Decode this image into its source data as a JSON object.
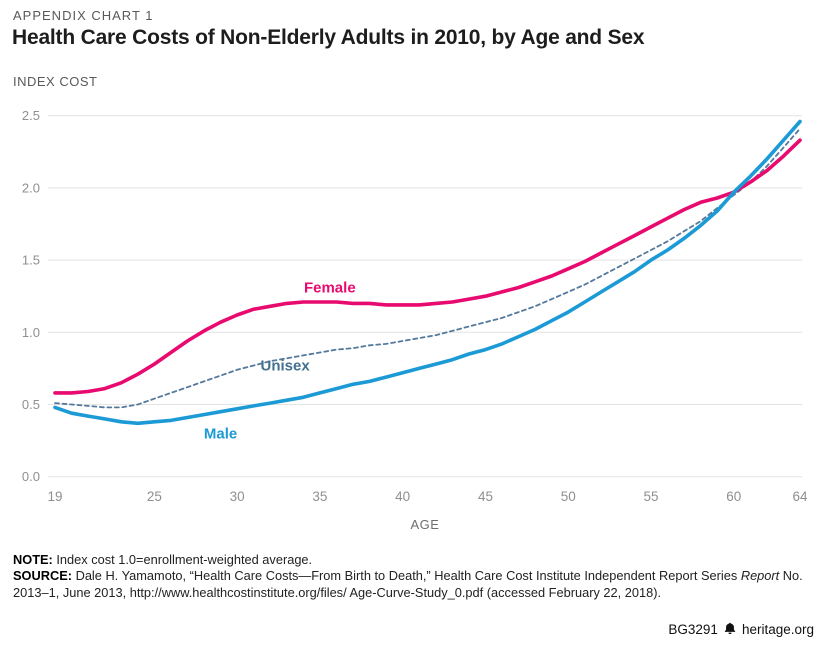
{
  "header": {
    "eyebrow": "APPENDIX CHART 1",
    "title": "Health Care Costs of Non-Elderly Adults in 2010, by Age and Sex"
  },
  "chart_data": {
    "type": "line",
    "title": "Health Care Costs of Non-Elderly Adults in 2010, by Age and Sex",
    "xlabel": "AGE",
    "ylabel": "INDEX COST",
    "x_range": [
      19,
      64
    ],
    "ylim": [
      0.0,
      2.5
    ],
    "x_ticks": [
      19,
      25,
      30,
      35,
      40,
      45,
      50,
      55,
      60,
      64
    ],
    "y_ticks": [
      "0.0",
      "0.5",
      "1.0",
      "1.5",
      "2.0",
      "2.5"
    ],
    "grid": true,
    "grid_color": "#e3e3e3",
    "tick_color": "#8f8f8f",
    "axis_title_color": "#6e6e6e",
    "legend_position": "inline-labels",
    "ages": [
      19,
      20,
      21,
      22,
      23,
      24,
      25,
      26,
      27,
      28,
      29,
      30,
      31,
      32,
      33,
      34,
      35,
      36,
      37,
      38,
      39,
      40,
      41,
      42,
      43,
      44,
      45,
      46,
      47,
      48,
      49,
      50,
      51,
      52,
      53,
      54,
      55,
      56,
      57,
      58,
      59,
      60,
      61,
      62,
      63,
      64
    ],
    "series": [
      {
        "name": "Female",
        "color": "#e80a6e",
        "dash": false,
        "width": 3.6,
        "label_age": 35.6,
        "label_value": 1.31,
        "values": [
          0.58,
          0.58,
          0.59,
          0.61,
          0.65,
          0.71,
          0.78,
          0.86,
          0.94,
          1.01,
          1.07,
          1.12,
          1.16,
          1.18,
          1.2,
          1.21,
          1.21,
          1.21,
          1.2,
          1.2,
          1.19,
          1.19,
          1.19,
          1.2,
          1.21,
          1.23,
          1.25,
          1.28,
          1.31,
          1.35,
          1.39,
          1.44,
          1.49,
          1.55,
          1.61,
          1.67,
          1.73,
          1.79,
          1.85,
          1.9,
          1.93,
          1.97,
          2.04,
          2.12,
          2.22,
          2.33
        ]
      },
      {
        "name": "Unisex",
        "color": "#54799c",
        "label_color": "#43708f",
        "dash": true,
        "width": 1.8,
        "label_age": 32.9,
        "label_value": 0.77,
        "values": [
          0.51,
          0.5,
          0.49,
          0.48,
          0.48,
          0.5,
          0.54,
          0.58,
          0.62,
          0.66,
          0.7,
          0.74,
          0.77,
          0.8,
          0.82,
          0.84,
          0.86,
          0.88,
          0.89,
          0.91,
          0.92,
          0.94,
          0.96,
          0.98,
          1.01,
          1.04,
          1.07,
          1.1,
          1.14,
          1.18,
          1.23,
          1.28,
          1.33,
          1.39,
          1.45,
          1.51,
          1.57,
          1.63,
          1.7,
          1.77,
          1.86,
          1.95,
          2.04,
          2.15,
          2.28,
          2.41
        ]
      },
      {
        "name": "Male",
        "color": "#1b9ad6",
        "dash": false,
        "width": 3.6,
        "label_age": 29.0,
        "label_value": 0.3,
        "values": [
          0.48,
          0.44,
          0.42,
          0.4,
          0.38,
          0.37,
          0.38,
          0.39,
          0.41,
          0.43,
          0.45,
          0.47,
          0.49,
          0.51,
          0.53,
          0.55,
          0.58,
          0.61,
          0.64,
          0.66,
          0.69,
          0.72,
          0.75,
          0.78,
          0.81,
          0.85,
          0.88,
          0.92,
          0.97,
          1.02,
          1.08,
          1.14,
          1.21,
          1.28,
          1.35,
          1.42,
          1.5,
          1.57,
          1.65,
          1.74,
          1.84,
          1.97,
          2.08,
          2.2,
          2.33,
          2.46
        ]
      }
    ]
  },
  "note": {
    "label": "NOTE:",
    "text": " Index cost 1.0=enrollment-weighted average."
  },
  "source": {
    "label": "SOURCE:",
    "text1": " Dale H. Yamamoto, “Health Care Costs—From Birth to Death,” Health Care Cost Institute Independent Report Series ",
    "italic": "Report",
    "text2": " No. 2013–1, June 2013, http://www.healthcostinstitute.org/files/ Age-Curve-Study_0.pdf (accessed February 22, 2018)."
  },
  "footer": {
    "report_id": "BG3291",
    "site": "heritage.org"
  }
}
